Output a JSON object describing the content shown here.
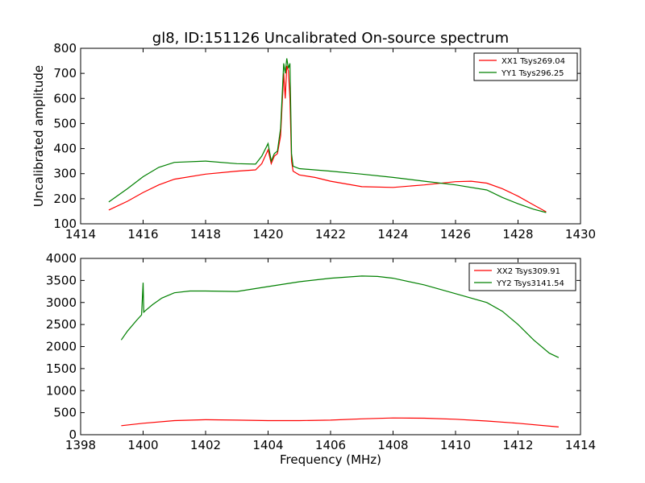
{
  "figure_title": "gl8, ID:151126 Uncalibrated On-source spectrum",
  "colors": {
    "xx": "#ff0000",
    "yy": "#008000",
    "axis": "#000000",
    "background": "#ffffff"
  },
  "chart_data": [
    {
      "type": "line",
      "title": "gl8, ID:151126 Uncalibrated On-source spectrum",
      "xlabel": "",
      "ylabel": "Uncalibrated amplitude",
      "xlim": [
        1414,
        1430
      ],
      "ylim": [
        100,
        800
      ],
      "xticks": [
        1414,
        1416,
        1418,
        1420,
        1422,
        1424,
        1426,
        1428,
        1430
      ],
      "yticks": [
        100,
        200,
        300,
        400,
        500,
        600,
        700,
        800
      ],
      "legend_position": "top-right",
      "series": [
        {
          "name": "XX1 Tsys269.04",
          "color": "#ff0000",
          "x": [
            1414.9,
            1415.5,
            1416,
            1416.5,
            1417,
            1418,
            1419,
            1419.6,
            1419.8,
            1420.0,
            1420.1,
            1420.2,
            1420.3,
            1420.4,
            1420.5,
            1420.55,
            1420.6,
            1420.65,
            1420.7,
            1420.75,
            1420.8,
            1421.0,
            1421.5,
            1422,
            1423,
            1424,
            1425,
            1426,
            1426.5,
            1427,
            1427.5,
            1428,
            1428.5,
            1428.9
          ],
          "y": [
            155,
            190,
            225,
            255,
            278,
            298,
            310,
            315,
            340,
            395,
            340,
            370,
            380,
            450,
            700,
            600,
            730,
            710,
            600,
            350,
            310,
            295,
            285,
            270,
            248,
            245,
            255,
            268,
            270,
            262,
            240,
            210,
            175,
            148
          ]
        },
        {
          "name": "YY1 Tsys296.25",
          "color": "#008000",
          "x": [
            1414.9,
            1415.5,
            1416,
            1416.5,
            1417,
            1418,
            1419,
            1419.6,
            1419.8,
            1420.0,
            1420.1,
            1420.2,
            1420.3,
            1420.4,
            1420.5,
            1420.55,
            1420.6,
            1420.65,
            1420.7,
            1420.75,
            1420.8,
            1421.0,
            1422,
            1423,
            1424,
            1425,
            1426,
            1427,
            1427.5,
            1428,
            1428.5,
            1428.9
          ],
          "y": [
            187,
            240,
            288,
            325,
            345,
            350,
            340,
            338,
            370,
            420,
            350,
            380,
            390,
            480,
            740,
            700,
            760,
            720,
            740,
            380,
            330,
            320,
            310,
            298,
            285,
            270,
            255,
            235,
            205,
            180,
            158,
            145
          ]
        }
      ]
    },
    {
      "type": "line",
      "title": "",
      "xlabel": "Frequency (MHz)",
      "ylabel": "",
      "xlim": [
        1398,
        1414
      ],
      "ylim": [
        0,
        4000
      ],
      "xticks": [
        1398,
        1400,
        1402,
        1404,
        1406,
        1408,
        1410,
        1412,
        1414
      ],
      "yticks": [
        0,
        500,
        1000,
        1500,
        2000,
        2500,
        3000,
        3500,
        4000
      ],
      "legend_position": "top-right",
      "series": [
        {
          "name": "XX2 Tsys309.91",
          "color": "#ff0000",
          "x": [
            1399.3,
            1400,
            1401,
            1402,
            1403,
            1404,
            1405,
            1406,
            1407,
            1408,
            1409,
            1410,
            1411,
            1412,
            1413.3
          ],
          "y": [
            205,
            260,
            320,
            340,
            330,
            320,
            320,
            330,
            360,
            380,
            375,
            350,
            310,
            260,
            175
          ]
        },
        {
          "name": "YY2 Tsys3141.54",
          "color": "#008000",
          "x": [
            1399.3,
            1399.5,
            1399.8,
            1399.95,
            1400.0,
            1400.02,
            1400.05,
            1400.3,
            1400.6,
            1401,
            1401.5,
            1402,
            1403,
            1404,
            1405,
            1406,
            1407,
            1407.5,
            1408,
            1409,
            1410,
            1411,
            1411.5,
            1412,
            1412.5,
            1413,
            1413.3
          ],
          "y": [
            2150,
            2350,
            2600,
            2720,
            3450,
            2780,
            2800,
            2950,
            3100,
            3220,
            3260,
            3260,
            3250,
            3360,
            3470,
            3550,
            3600,
            3590,
            3550,
            3400,
            3200,
            3000,
            2800,
            2500,
            2150,
            1850,
            1750
          ]
        }
      ]
    }
  ]
}
